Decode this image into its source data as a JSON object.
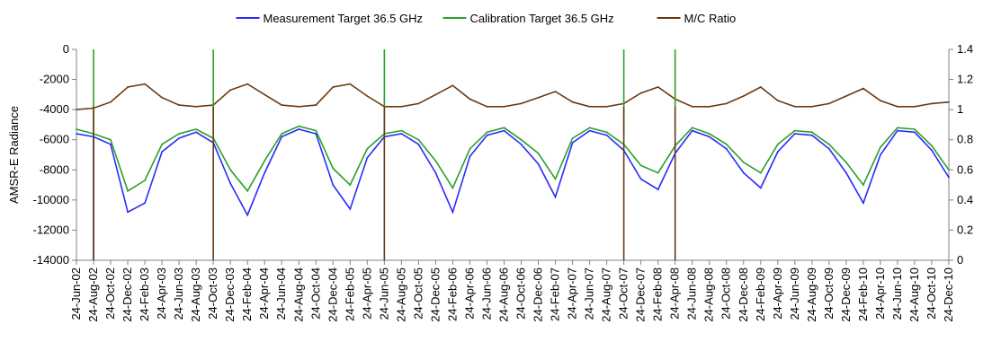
{
  "chart_data": {
    "type": "line",
    "title": "",
    "xlabel": "",
    "ylabel": "AMSR-E Radiance",
    "y2label": "",
    "ylim": [
      -14000,
      0
    ],
    "y2lim": [
      0,
      1.4
    ],
    "yticks": [
      0,
      -2000,
      -4000,
      -6000,
      -8000,
      -10000,
      -12000,
      -14000
    ],
    "yticks_labels": [
      "0",
      "-2000",
      "-4000",
      "-6000",
      "-8000",
      "-10000",
      "-12000",
      "-14000"
    ],
    "y2ticks": [
      1.4,
      1.2,
      1.0,
      0.8,
      0.6,
      0.4,
      0.2,
      0.0
    ],
    "y2ticks_labels": [
      "1.4",
      "1.2",
      "1",
      "0.8",
      "0.6",
      "0.4",
      "0.2",
      "0"
    ],
    "xtick_labels": [
      "24-Jun-02",
      "24-Aug-02",
      "24-Oct-02",
      "24-Dec-02",
      "24-Feb-03",
      "24-Apr-03",
      "24-Jun-03",
      "24-Aug-03",
      "24-Oct-03",
      "24-Dec-03",
      "24-Feb-04",
      "24-Apr-04",
      "24-Jun-04",
      "24-Aug-04",
      "24-Oct-04",
      "24-Dec-04",
      "24-Feb-05",
      "24-Apr-05",
      "24-Jun-05",
      "24-Aug-05",
      "24-Oct-05",
      "24-Dec-05",
      "24-Feb-06",
      "24-Apr-06",
      "24-Jun-06",
      "24-Aug-06",
      "24-Oct-06",
      "24-Dec-06",
      "24-Feb-07",
      "24-Apr-07",
      "24-Jun-07",
      "24-Aug-07",
      "24-Oct-07",
      "24-Dec-07",
      "24-Feb-08",
      "24-Apr-08",
      "24-Jun-08",
      "24-Aug-08",
      "24-Oct-08",
      "24-Dec-08",
      "24-Feb-09",
      "24-Apr-09",
      "24-Jun-09",
      "24-Aug-09",
      "24-Oct-09",
      "24-Dec-09",
      "24-Feb-10",
      "24-Apr-10",
      "24-Jun-10",
      "24-Aug-10",
      "24-Oct-10",
      "24-Dec-10"
    ],
    "grid": false,
    "legend_position": "top-center",
    "series": [
      {
        "name": "Measurement Target 36.5 GHz",
        "axis": "left",
        "color": "#2a2aff",
        "x": [
          "24-Jun-02",
          "24-Aug-02",
          "24-Oct-02",
          "24-Dec-02",
          "24-Feb-03",
          "24-Apr-03",
          "24-Jun-03",
          "24-Aug-03",
          "24-Oct-03",
          "24-Dec-03",
          "24-Feb-04",
          "24-Apr-04",
          "24-Jun-04",
          "24-Aug-04",
          "24-Oct-04",
          "24-Dec-04",
          "24-Feb-05",
          "24-Apr-05",
          "24-Jun-05",
          "24-Aug-05",
          "24-Oct-05",
          "24-Dec-05",
          "24-Feb-06",
          "24-Apr-06",
          "24-Jun-06",
          "24-Aug-06",
          "24-Oct-06",
          "24-Dec-06",
          "24-Feb-07",
          "24-Apr-07",
          "24-Jun-07",
          "24-Aug-07",
          "24-Oct-07",
          "24-Dec-07",
          "24-Feb-08",
          "24-Apr-08",
          "24-Jun-08",
          "24-Aug-08",
          "24-Oct-08",
          "24-Dec-08",
          "24-Feb-09",
          "24-Apr-09",
          "24-Jun-09",
          "24-Aug-09",
          "24-Oct-09",
          "24-Dec-09",
          "24-Feb-10",
          "24-Apr-10",
          "24-Jun-10",
          "24-Aug-10",
          "24-Oct-10",
          "24-Dec-10"
        ],
        "values": [
          -5600,
          -5800,
          -6300,
          -10800,
          -10200,
          -6800,
          -5900,
          -5500,
          -6200,
          -8900,
          -11000,
          -8200,
          -5800,
          -5300,
          -5600,
          -9000,
          -10600,
          -7200,
          -5800,
          -5600,
          -6300,
          -8200,
          -10800,
          -7100,
          -5700,
          -5400,
          -6300,
          -7600,
          -9800,
          -6200,
          -5400,
          -5700,
          -6700,
          -8600,
          -9300,
          -6900,
          -5400,
          -5800,
          -6600,
          -8200,
          -9200,
          -6800,
          -5600,
          -5700,
          -6600,
          -8200,
          -10200,
          -7000,
          -5400,
          -5500,
          -6700,
          -8500
        ]
      },
      {
        "name": "Calibration Target 36.5 GHz",
        "axis": "left",
        "color": "#2aa02a",
        "x": [
          "24-Jun-02",
          "24-Aug-02",
          "24-Oct-02",
          "24-Dec-02",
          "24-Feb-03",
          "24-Apr-03",
          "24-Jun-03",
          "24-Aug-03",
          "24-Oct-03",
          "24-Dec-03",
          "24-Feb-04",
          "24-Apr-04",
          "24-Jun-04",
          "24-Aug-04",
          "24-Oct-04",
          "24-Dec-04",
          "24-Feb-05",
          "24-Apr-05",
          "24-Jun-05",
          "24-Aug-05",
          "24-Oct-05",
          "24-Dec-05",
          "24-Feb-06",
          "24-Apr-06",
          "24-Jun-06",
          "24-Aug-06",
          "24-Oct-06",
          "24-Dec-06",
          "24-Feb-07",
          "24-Apr-07",
          "24-Jun-07",
          "24-Aug-07",
          "24-Oct-07",
          "24-Dec-07",
          "24-Feb-08",
          "24-Apr-08",
          "24-Jun-08",
          "24-Aug-08",
          "24-Oct-08",
          "24-Dec-08",
          "24-Feb-09",
          "24-Apr-09",
          "24-Jun-09",
          "24-Aug-09",
          "24-Oct-09",
          "24-Dec-09",
          "24-Feb-10",
          "24-Apr-10",
          "24-Jun-10",
          "24-Aug-10",
          "24-Oct-10",
          "24-Dec-10"
        ],
        "values": [
          -5300,
          -5600,
          -6000,
          -9400,
          -8700,
          -6300,
          -5600,
          -5300,
          -5900,
          -8000,
          -9400,
          -7400,
          -5600,
          -5100,
          -5400,
          -7900,
          -9000,
          -6600,
          -5600,
          -5400,
          -6000,
          -7400,
          -9200,
          -6600,
          -5500,
          -5200,
          -6000,
          -6900,
          -8600,
          -5900,
          -5200,
          -5500,
          -6300,
          -7700,
          -8200,
          -6400,
          -5200,
          -5600,
          -6300,
          -7500,
          -8200,
          -6300,
          -5400,
          -5500,
          -6300,
          -7500,
          -9000,
          -6500,
          -5200,
          -5300,
          -6400,
          -8000
        ]
      },
      {
        "name": "M/C Ratio",
        "axis": "right",
        "color": "#6a3a12",
        "x": [
          "24-Jun-02",
          "24-Aug-02",
          "24-Oct-02",
          "24-Dec-02",
          "24-Feb-03",
          "24-Apr-03",
          "24-Jun-03",
          "24-Aug-03",
          "24-Oct-03",
          "24-Dec-03",
          "24-Feb-04",
          "24-Apr-04",
          "24-Jun-04",
          "24-Aug-04",
          "24-Oct-04",
          "24-Dec-04",
          "24-Feb-05",
          "24-Apr-05",
          "24-Jun-05",
          "24-Aug-05",
          "24-Oct-05",
          "24-Dec-05",
          "24-Feb-06",
          "24-Apr-06",
          "24-Jun-06",
          "24-Aug-06",
          "24-Oct-06",
          "24-Dec-06",
          "24-Feb-07",
          "24-Apr-07",
          "24-Jun-07",
          "24-Aug-07",
          "24-Oct-07",
          "24-Dec-07",
          "24-Feb-08",
          "24-Apr-08",
          "24-Jun-08",
          "24-Aug-08",
          "24-Oct-08",
          "24-Dec-08",
          "24-Feb-09",
          "24-Apr-09",
          "24-Jun-09",
          "24-Aug-09",
          "24-Oct-09",
          "24-Dec-09",
          "24-Feb-10",
          "24-Apr-10",
          "24-Jun-10",
          "24-Aug-10",
          "24-Oct-10",
          "24-Dec-10"
        ],
        "values": [
          1.0,
          1.01,
          1.05,
          1.15,
          1.17,
          1.08,
          1.03,
          1.02,
          1.03,
          1.13,
          1.17,
          1.1,
          1.03,
          1.02,
          1.03,
          1.15,
          1.17,
          1.09,
          1.02,
          1.02,
          1.04,
          1.1,
          1.16,
          1.07,
          1.02,
          1.02,
          1.04,
          1.08,
          1.12,
          1.05,
          1.02,
          1.02,
          1.04,
          1.11,
          1.15,
          1.07,
          1.02,
          1.02,
          1.04,
          1.09,
          1.15,
          1.06,
          1.02,
          1.02,
          1.04,
          1.09,
          1.14,
          1.06,
          1.02,
          1.02,
          1.04,
          1.05
        ]
      }
    ],
    "dropouts": [
      {
        "series": "Measurement Target 36.5 GHz",
        "x": "24-Aug-02",
        "value": -14000
      },
      {
        "series": "Calibration Target 36.5 GHz",
        "x": "24-Aug-02",
        "value": 0
      },
      {
        "series": "M/C Ratio",
        "x": "24-Aug-02",
        "value": 0
      },
      {
        "series": "Calibration Target 36.5 GHz",
        "x": "24-Oct-03",
        "value": 0
      },
      {
        "series": "M/C Ratio",
        "x": "24-Oct-03",
        "value": 0
      },
      {
        "series": "Calibration Target 36.5 GHz",
        "x": "24-Jun-05",
        "value": 0
      },
      {
        "series": "M/C Ratio",
        "x": "24-Jun-05",
        "value": 0
      },
      {
        "series": "Calibration Target 36.5 GHz",
        "x": "24-Oct-07",
        "value": 0
      },
      {
        "series": "M/C Ratio",
        "x": "24-Oct-07",
        "value": 0
      },
      {
        "series": "Calibration Target 36.5 GHz",
        "x": "24-Apr-08",
        "value": 0
      },
      {
        "series": "M/C Ratio",
        "x": "24-Apr-08",
        "value": 0
      }
    ]
  }
}
